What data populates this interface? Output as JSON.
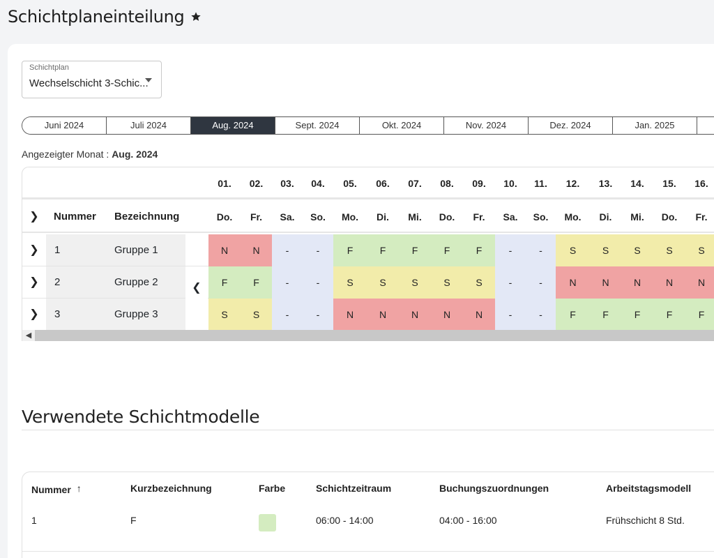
{
  "page": {
    "title": "Schichtplaneinteilung"
  },
  "plan_select": {
    "label": "Schichtplan",
    "value": "Wechselschicht 3-Schic..."
  },
  "months": [
    "Juni 2024",
    "Juli 2024",
    "Aug. 2024",
    "Sept. 2024",
    "Okt. 2024",
    "Nov. 2024",
    "Dez. 2024",
    "Jan. 2025"
  ],
  "active_month": "Aug. 2024",
  "shown_month": {
    "label": "Angezeigter Monat :",
    "value": "Aug. 2024"
  },
  "grid": {
    "col_nummer": "Nummer",
    "col_bezeichnung": "Bezeichnung",
    "dates": [
      "01.",
      "02.",
      "03.",
      "04.",
      "05.",
      "06.",
      "07.",
      "08.",
      "09.",
      "10.",
      "11.",
      "12.",
      "13.",
      "14.",
      "15.",
      "16."
    ],
    "days": [
      "Do.",
      "Fr.",
      "Sa.",
      "So.",
      "Mo.",
      "Di.",
      "Mi.",
      "Do.",
      "Fr.",
      "Sa.",
      "So.",
      "Mo.",
      "Di.",
      "Mi.",
      "Do.",
      "Fr."
    ],
    "rows": [
      {
        "nummer": "1",
        "name": "Gruppe 1",
        "cells": [
          "N",
          "N",
          "-",
          "-",
          "F",
          "F",
          "F",
          "F",
          "F",
          "-",
          "-",
          "S",
          "S",
          "S",
          "S",
          "S"
        ]
      },
      {
        "nummer": "2",
        "name": "Gruppe 2",
        "cells": [
          "F",
          "F",
          "-",
          "-",
          "S",
          "S",
          "S",
          "S",
          "S",
          "-",
          "-",
          "N",
          "N",
          "N",
          "N",
          "N"
        ]
      },
      {
        "nummer": "3",
        "name": "Gruppe 3",
        "cells": [
          "S",
          "S",
          "-",
          "-",
          "N",
          "N",
          "N",
          "N",
          "N",
          "-",
          "-",
          "F",
          "F",
          "F",
          "F",
          "F"
        ]
      }
    ]
  },
  "colors": {
    "N": "#f0a3a3",
    "F": "#d4ecc0",
    "S": "#f2ecaa",
    "weekend": "#e3e8f6"
  },
  "models_section": {
    "title": "Verwendete Schichtmodelle",
    "headers": [
      "Nummer",
      "Kurzbezeichnung",
      "Farbe",
      "Schichtzeitraum",
      "Buchungszuordnungen",
      "Arbeitstagsmodell"
    ],
    "rows": [
      {
        "nummer": "1",
        "kurz": "F",
        "farbe": "#d4ecc0",
        "zeitraum": "06:00 - 14:00",
        "buchung": "04:00 - 16:00",
        "modell": "Frühschicht 8 Std."
      }
    ]
  }
}
